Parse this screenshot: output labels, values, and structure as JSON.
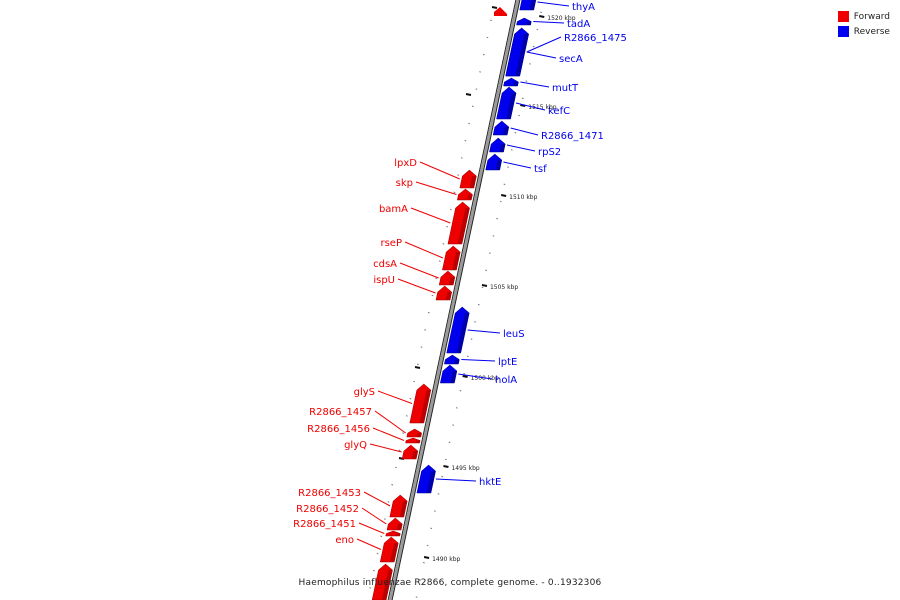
{
  "legend": {
    "forward_label": "Forward",
    "reverse_label": "Reverse",
    "forward_color": "#ee0000",
    "reverse_color": "#0000ee"
  },
  "caption": "Haemophilus influenzae R2866, complete genome. - 0..1932306",
  "scale_ticks": [
    {
      "label": "1520 kbp"
    },
    {
      "label": "1515 kbp"
    },
    {
      "label": "1510 kbp"
    },
    {
      "label": "1505 kbp"
    },
    {
      "label": "1500 kbp"
    },
    {
      "label": "1495 kbp"
    },
    {
      "label": "1490 kbp"
    }
  ],
  "genes": [
    {
      "name": "thyA",
      "strand": "reverse"
    },
    {
      "name": "tadA",
      "strand": "reverse"
    },
    {
      "name": "R2866_1475",
      "strand": "reverse"
    },
    {
      "name": "secA",
      "strand": "reverse"
    },
    {
      "name": "mutT",
      "strand": "reverse"
    },
    {
      "name": "kefC",
      "strand": "reverse"
    },
    {
      "name": "R2866_1471",
      "strand": "reverse"
    },
    {
      "name": "rpS2",
      "strand": "reverse"
    },
    {
      "name": "tsf",
      "strand": "reverse"
    },
    {
      "name": "lpxD",
      "strand": "forward"
    },
    {
      "name": "skp",
      "strand": "forward"
    },
    {
      "name": "bamA",
      "strand": "forward"
    },
    {
      "name": "rseP",
      "strand": "forward"
    },
    {
      "name": "cdsA",
      "strand": "forward"
    },
    {
      "name": "ispU",
      "strand": "forward"
    },
    {
      "name": "leuS",
      "strand": "reverse"
    },
    {
      "name": "lptE",
      "strand": "reverse"
    },
    {
      "name": "holA",
      "strand": "reverse"
    },
    {
      "name": "glyS",
      "strand": "forward"
    },
    {
      "name": "R2866_1457",
      "strand": "forward"
    },
    {
      "name": "R2866_1456",
      "strand": "forward"
    },
    {
      "name": "glyQ",
      "strand": "forward"
    },
    {
      "name": "hktE",
      "strand": "reverse"
    },
    {
      "name": "R2866_1453",
      "strand": "forward"
    },
    {
      "name": "R2866_1452",
      "strand": "forward"
    },
    {
      "name": "R2866_1451",
      "strand": "forward"
    },
    {
      "name": "eno",
      "strand": "forward"
    }
  ]
}
